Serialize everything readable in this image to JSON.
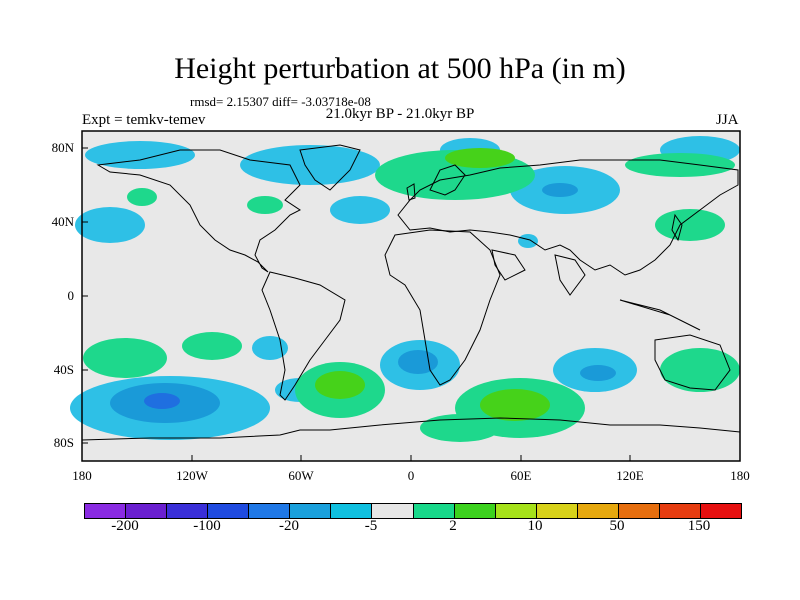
{
  "title": "Height perturbation at 500 hPa (in m)",
  "stats": "rmsd= 2.15307 diff= -3.03718e-08",
  "experiment": "Expt = temkv-temev",
  "period": "21.0kyr BP - 21.0kyr BP",
  "season": "JJA",
  "lat_ticks": [
    "80N",
    "40N",
    "0",
    "40S",
    "80S"
  ],
  "lon_ticks": [
    "180",
    "120W",
    "60W",
    "0",
    "60E",
    "120E",
    "180"
  ],
  "colorbar": {
    "colors": [
      "#8a2be2",
      "#6a1fd0",
      "#3a2fd8",
      "#1f4be0",
      "#1f78e6",
      "#1aa0dc",
      "#10c0e0",
      "#e6e6e6",
      "#18d88a",
      "#3cd21e",
      "#a6e21a",
      "#d8d21a",
      "#e6a80e",
      "#e66e0e",
      "#e63c10",
      "#e61010"
    ],
    "labels": [
      "-200",
      "-100",
      "-20",
      "-5",
      "2",
      "10",
      "50",
      "150"
    ]
  }
}
